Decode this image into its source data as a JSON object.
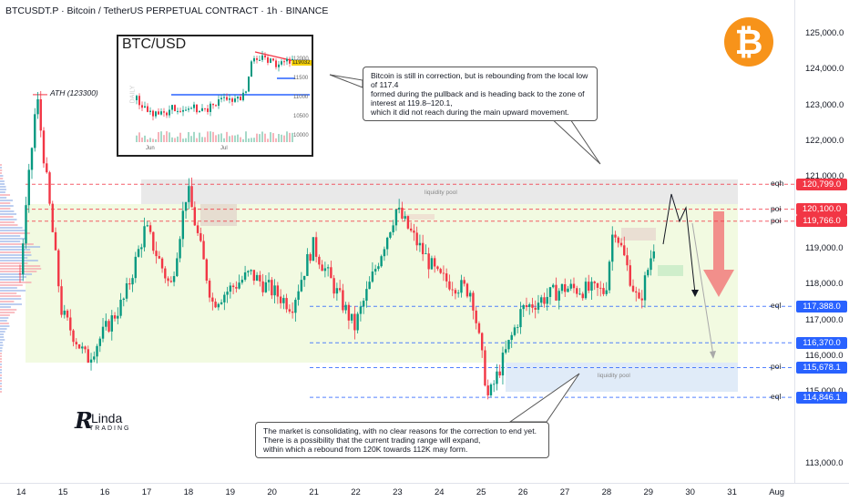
{
  "header": {
    "title": "BTCUSDT.P · Bitcoin / TetherUS PERPETUAL CONTRACT · 1h · BINANCE"
  },
  "ath_label": "ATH (123300)",
  "callouts": {
    "top": "Bitcoin is still in correction, but is rebounding from the local low of 117.4\nformed during the pullback and is heading back to the zone of interest at 119.8–120.1,\nwhich it did not reach during the main upward movement.",
    "bottom": "The market is consolidating, with no clear reasons for the correction to end yet.\nThere is a possibility that the current trading range will expand,\nwithin which a rebound from 120K towards 112K may form."
  },
  "zone_labels": {
    "top": "liquidity pool",
    "bottom": "liquidity pool"
  },
  "logo": {
    "brand_line1": "Linda",
    "brand_line2": "TRADING",
    "icon": "bitcoin-icon",
    "icon_char": "₿"
  },
  "inset": {
    "title": "BTC/USD",
    "side_label": "DAILY",
    "price_tag": "119032",
    "yticks": [
      "12000",
      "11500",
      "11000",
      "10500",
      "10000"
    ],
    "xticks": [
      "Jun",
      "Jul"
    ]
  },
  "colors": {
    "up": "#089981",
    "down": "#f23645",
    "zone_green": "#e8f5c9",
    "zone_grey": "#e4e4e4",
    "zone_blue": "#dde9f7",
    "tag_red": "#f23645",
    "tag_blue": "#2962ff",
    "bitcoin": "#f7931a"
  },
  "chart_data": {
    "type": "candlestick",
    "title": "BTCUSDT.P · Bitcoin / TetherUS PERPETUAL CONTRACT · 1h · BINANCE",
    "x_ticks": [
      "14",
      "15",
      "16",
      "17",
      "18",
      "19",
      "20",
      "21",
      "22",
      "23",
      "24",
      "25",
      "26",
      "27",
      "28",
      "29",
      "30",
      "31",
      "Aug"
    ],
    "y_ticks": [
      "125,000.0",
      "124,000.0",
      "123,000.0",
      "122,000.0",
      "121,000.0",
      "119,000.0",
      "118,000.0",
      "117,000.0",
      "116,000.0",
      "115,000.0",
      "113,000.0"
    ],
    "ylim": [
      112600,
      125700
    ],
    "approx_path": [
      {
        "day": "14",
        "price": 118300
      },
      {
        "day": "14.4",
        "price": 123300
      },
      {
        "day": "15",
        "price": 117200
      },
      {
        "day": "15.6",
        "price": 115900
      },
      {
        "day": "16.5",
        "price": 117600
      },
      {
        "day": "17",
        "price": 119600
      },
      {
        "day": "17.6",
        "price": 117900
      },
      {
        "day": "18",
        "price": 120700
      },
      {
        "day": "18.6",
        "price": 117500
      },
      {
        "day": "19.5",
        "price": 118300
      },
      {
        "day": "20.5",
        "price": 117400
      },
      {
        "day": "21",
        "price": 119100
      },
      {
        "day": "22",
        "price": 116800
      },
      {
        "day": "23",
        "price": 120100
      },
      {
        "day": "24",
        "price": 118200
      },
      {
        "day": "24.8",
        "price": 117800
      },
      {
        "day": "25.2",
        "price": 114800
      },
      {
        "day": "26",
        "price": 117300
      },
      {
        "day": "27",
        "price": 117900
      },
      {
        "day": "28",
        "price": 117800
      },
      {
        "day": "28.2",
        "price": 119700
      },
      {
        "day": "28.8",
        "price": 117400
      },
      {
        "day": "29.2",
        "price": 119300
      }
    ],
    "levels": [
      {
        "price": 120799.0,
        "label": "eqh",
        "tag": "120,799.0",
        "color": "red"
      },
      {
        "price": 120100.0,
        "label": "poi",
        "tag": "120,100.0",
        "color": "red"
      },
      {
        "price": 119766.0,
        "label": "poi",
        "tag": "119,766.0",
        "color": "red"
      },
      {
        "price": 117388.0,
        "label": "eql",
        "tag": "117,388.0",
        "color": "blue"
      },
      {
        "price": 116370.0,
        "label": "",
        "tag": "116,370.0",
        "color": "blue"
      },
      {
        "price": 115678.1,
        "label": "poi",
        "tag": "115,678.1",
        "color": "blue"
      },
      {
        "price": 114846.1,
        "label": "eql",
        "tag": "114,846.1",
        "color": "blue"
      }
    ],
    "annotations": [
      "ATH (123300)",
      "liquidity pool",
      "liquidity pool"
    ]
  }
}
